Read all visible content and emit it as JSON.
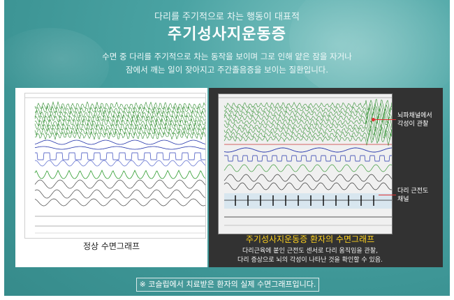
{
  "header": {
    "subtitle": "다리를 주기적으로 차는 행동이 대표적",
    "title": "주기성사지운동증",
    "description_lines": [
      "수면 중 다리를 주기적으로 차는 동작을 보이며 그로 인해 얕은 잠을 자거나",
      "잠에서 깨는 일이 잦아지고 주간졸음증을 보이는 질환입니다."
    ]
  },
  "left_panel": {
    "caption": "정상 수면그래프"
  },
  "right_panel": {
    "caption": "주기성사지운동증 환자의 수면그래프",
    "description_lines": [
      "다리근육에 붙인 근전도 센서로 다리 움직임을 관찰,",
      "다리 증상으로 뇌의 각성이 나타난 것을 확인할 수 있음."
    ],
    "annotations": {
      "brainwave": [
        "뇌파채널에서",
        "각성이 관찰"
      ],
      "leg_emg": [
        "다리 근전도",
        "채널"
      ]
    }
  },
  "notice": "※ 코슬립에서 치료받은 환자의 실제 수면그래프입니다.",
  "colors": {
    "background": "#3d9595",
    "caption_highlight": "#ffd21f",
    "dark_panel": "#323232",
    "annotation_line": "#e03030"
  }
}
